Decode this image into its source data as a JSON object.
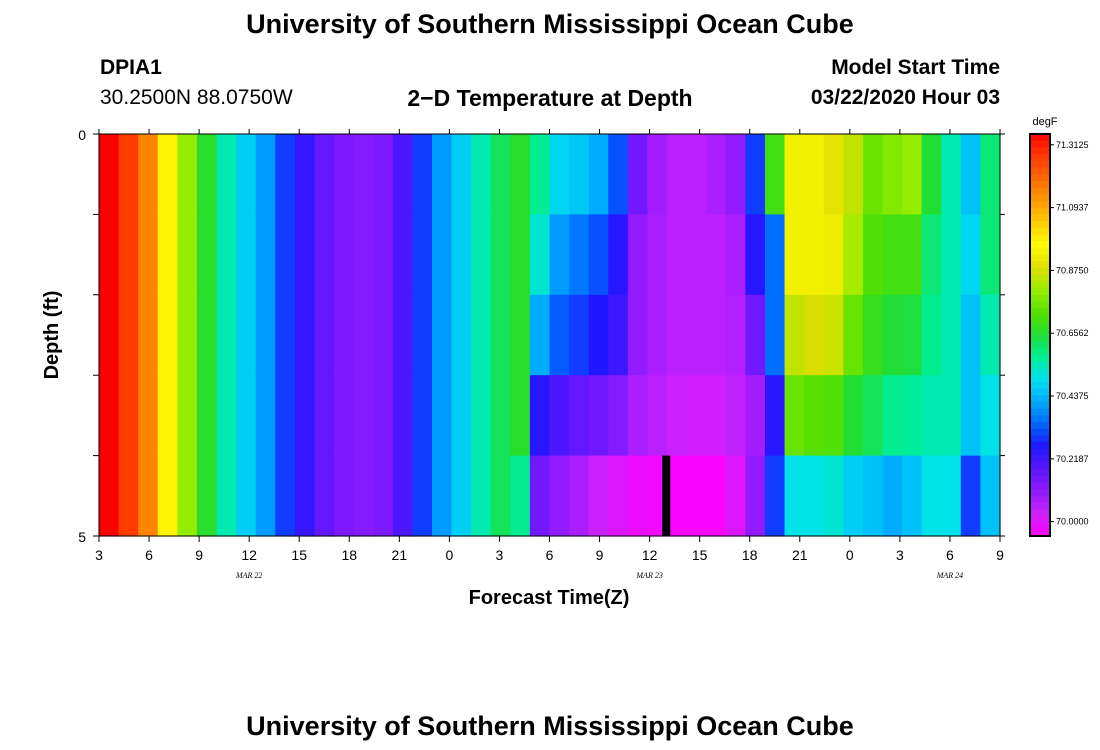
{
  "header": {
    "title": "University of Southern Mississippi Ocean Cube",
    "station_id": "DPIA1",
    "coordinates": "30.2500N 88.0750W",
    "subtitle": "2−D Temperature at Depth",
    "model_start_label": "Model Start Time",
    "model_start_value": "03/22/2020 Hour 03"
  },
  "footer": {
    "title": "University of Southern Mississippi Ocean Cube"
  },
  "chart_data": {
    "type": "heatmap",
    "title": "2−D Temperature at Depth",
    "xlabel": "Forecast Time(Z)",
    "ylabel": "Depth (ft)",
    "x_ticks": [
      "3",
      "6",
      "9",
      "12",
      "15",
      "18",
      "21",
      "0",
      "3",
      "6",
      "9",
      "12",
      "15",
      "18",
      "21",
      "0",
      "3",
      "6",
      "9"
    ],
    "date_labels": [
      "MAR 22",
      "MAR 23",
      "MAR 24"
    ],
    "y_ticks": [
      "0",
      "5"
    ],
    "ylim": [
      0,
      5
    ],
    "x_hours_since_start": [
      0,
      54
    ],
    "units": "degF",
    "colorbar_ticks": [
      "71.3125",
      "71.0937",
      "70.8750",
      "70.6562",
      "70.4375",
      "70.2187",
      "70.0000"
    ],
    "color_scale": [
      "#ff00ff",
      "#cc22ff",
      "#8f1aff",
      "#5a16ff",
      "#1f16ff",
      "#0064ff",
      "#00aaff",
      "#00e0ee",
      "#00ee99",
      "#22dd33",
      "#55e000",
      "#99ee00",
      "#dddd00",
      "#ffff00",
      "#ffcc00",
      "#ff9a00",
      "#ff6a00",
      "#ff3a00",
      "#ff0000"
    ],
    "vmin": 69.95,
    "vmax": 71.35,
    "depth_bins": [
      "0-1",
      "1-2",
      "2-3",
      "3-4",
      "4-5"
    ],
    "columns": [
      [
        71.35,
        71.35,
        71.35,
        71.35,
        71.35
      ],
      [
        71.27,
        71.27,
        71.27,
        71.27,
        71.27
      ],
      [
        71.15,
        71.15,
        71.15,
        71.15,
        71.15
      ],
      [
        70.98,
        70.98,
        70.98,
        70.98,
        70.98
      ],
      [
        70.8,
        70.8,
        70.8,
        70.8,
        70.8
      ],
      [
        70.66,
        70.66,
        70.66,
        70.66,
        70.66
      ],
      [
        70.55,
        70.55,
        70.55,
        70.55,
        70.55
      ],
      [
        70.47,
        70.47,
        70.47,
        70.47,
        70.47
      ],
      [
        70.4,
        70.4,
        70.4,
        70.4,
        70.4
      ],
      [
        70.3,
        70.3,
        70.3,
        70.3,
        70.3
      ],
      [
        70.23,
        70.23,
        70.23,
        70.23,
        70.23
      ],
      [
        70.17,
        70.17,
        70.17,
        70.17,
        70.17
      ],
      [
        70.13,
        70.13,
        70.13,
        70.13,
        70.13
      ],
      [
        70.12,
        70.12,
        70.12,
        70.12,
        70.12
      ],
      [
        70.13,
        70.13,
        70.13,
        70.13,
        70.13
      ],
      [
        70.2,
        70.2,
        70.2,
        70.2,
        70.2
      ],
      [
        70.3,
        70.3,
        70.3,
        70.3,
        70.3
      ],
      [
        70.4,
        70.4,
        70.4,
        70.4,
        70.4
      ],
      [
        70.47,
        70.47,
        70.47,
        70.47,
        70.47
      ],
      [
        70.55,
        70.55,
        70.55,
        70.55,
        70.55
      ],
      [
        70.62,
        70.62,
        70.62,
        70.62,
        70.62
      ],
      [
        70.66,
        70.66,
        70.66,
        70.66,
        70.58
      ],
      [
        70.58,
        70.52,
        70.42,
        70.25,
        70.15
      ],
      [
        70.48,
        70.4,
        70.33,
        70.2,
        70.1
      ],
      [
        70.46,
        70.36,
        70.3,
        70.17,
        70.07
      ],
      [
        70.42,
        70.32,
        70.26,
        70.15,
        70.03
      ],
      [
        70.32,
        70.25,
        70.22,
        70.12,
        70.0
      ],
      [
        70.15,
        70.1,
        70.1,
        70.07,
        69.98
      ],
      [
        70.08,
        70.07,
        70.07,
        70.05,
        69.97
      ],
      [
        70.05,
        70.05,
        70.05,
        70.03,
        69.96
      ],
      [
        70.05,
        70.05,
        70.05,
        70.02,
        69.96
      ],
      [
        70.07,
        70.05,
        70.05,
        70.02,
        69.96
      ],
      [
        70.1,
        70.07,
        70.06,
        70.04,
        70.0
      ],
      [
        70.3,
        70.25,
        70.15,
        70.08,
        70.1
      ],
      [
        70.7,
        70.35,
        70.35,
        70.25,
        70.3
      ],
      [
        70.93,
        70.93,
        70.85,
        70.75,
        70.5
      ],
      [
        70.93,
        70.93,
        70.88,
        70.73,
        70.5
      ],
      [
        70.9,
        70.92,
        70.86,
        70.72,
        70.52
      ],
      [
        70.85,
        70.82,
        70.75,
        70.65,
        70.47
      ],
      [
        70.75,
        70.72,
        70.68,
        70.62,
        70.45
      ],
      [
        70.78,
        70.7,
        70.65,
        70.58,
        70.42
      ],
      [
        70.8,
        70.7,
        70.64,
        70.57,
        70.45
      ],
      [
        70.65,
        70.6,
        70.58,
        70.55,
        70.5
      ],
      [
        70.55,
        70.55,
        70.55,
        70.55,
        70.5
      ],
      [
        70.45,
        70.48,
        70.45,
        70.45,
        70.3
      ],
      [
        70.6,
        70.6,
        70.55,
        70.5,
        70.45
      ]
    ],
    "marker_hour": 34
  }
}
